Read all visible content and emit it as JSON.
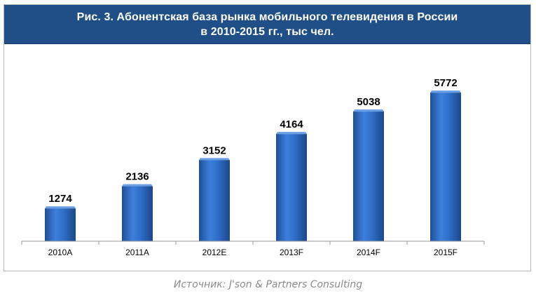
{
  "header": {
    "title_line1": "Рис. 3. Абонентская база рынка мобильного телевидения в России",
    "title_line2": "в 2010-2015 гг., тыс чел."
  },
  "colors": {
    "header_bg": "#1f4f86",
    "bar": "#2f6fc9",
    "bar_dark": "#1f4f96",
    "bar_light": "#4e8ce2",
    "axis": "#9a9a9a",
    "source": "#8a8a8a"
  },
  "source": "Источник: J'son & Partners Consulting",
  "chart_data": {
    "type": "bar",
    "title": "Рис. 3. Абонентская база рынка мобильного телевидения в России в 2010-2015 гг., тыс чел.",
    "categories": [
      "2010A",
      "2011A",
      "2012E",
      "2013F",
      "2014F",
      "2015F"
    ],
    "values": [
      1274,
      2136,
      3152,
      4164,
      5038,
      5772
    ],
    "ylim": [
      0,
      6000
    ],
    "grid": false,
    "legend": "none"
  }
}
